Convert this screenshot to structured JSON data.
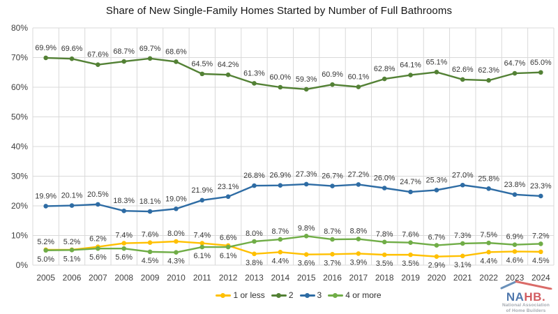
{
  "chart_data": {
    "type": "line",
    "title": "Share of New Single-Family Homes Started by Number of Full Bathrooms",
    "xlabel": "",
    "ylabel": "",
    "ylim": [
      0,
      80
    ],
    "grid": true,
    "legend_position": "bottom",
    "gridline_color": "#D9D9D9",
    "y_ticks": [
      "0%",
      "10%",
      "20%",
      "30%",
      "40%",
      "50%",
      "60%",
      "70%",
      "80%"
    ],
    "categories": [
      2005,
      2006,
      2007,
      2008,
      2009,
      2010,
      2011,
      2012,
      2013,
      2014,
      2015,
      2016,
      2017,
      2018,
      2019,
      2020,
      2021,
      2022,
      2023,
      2024
    ],
    "series": [
      {
        "name": "1 or less",
        "color": "#FFC000",
        "values": [
          5.2,
          5.2,
          6.2,
          7.4,
          7.6,
          8.0,
          7.4,
          6.6,
          3.8,
          4.4,
          3.6,
          3.7,
          3.9,
          3.5,
          3.5,
          2.9,
          3.1,
          4.4,
          4.6,
          4.5
        ]
      },
      {
        "name": "2",
        "color": "#538135",
        "values": [
          69.9,
          69.6,
          67.6,
          68.7,
          69.7,
          68.6,
          64.5,
          64.2,
          61.3,
          60.0,
          59.3,
          60.9,
          60.1,
          62.8,
          64.1,
          65.1,
          62.6,
          62.3,
          64.7,
          65.0
        ]
      },
      {
        "name": "3",
        "color": "#2E6CA4",
        "values": [
          19.9,
          20.1,
          20.5,
          18.3,
          18.1,
          19.0,
          21.9,
          23.1,
          26.8,
          26.9,
          27.3,
          26.7,
          27.2,
          26.0,
          24.7,
          25.3,
          27.0,
          25.8,
          23.8,
          23.3
        ]
      },
      {
        "name": "4 or more",
        "color": "#70AD47",
        "values": [
          5.0,
          5.1,
          5.6,
          5.6,
          4.5,
          4.3,
          6.1,
          6.1,
          8.0,
          8.7,
          9.8,
          8.7,
          8.8,
          7.8,
          7.6,
          6.7,
          7.3,
          7.5,
          6.9,
          7.2
        ]
      }
    ]
  },
  "logo": {
    "word_blue": "NA",
    "word_red": "HB.",
    "tagline1": "National Association",
    "tagline2": "of Home Builders"
  }
}
